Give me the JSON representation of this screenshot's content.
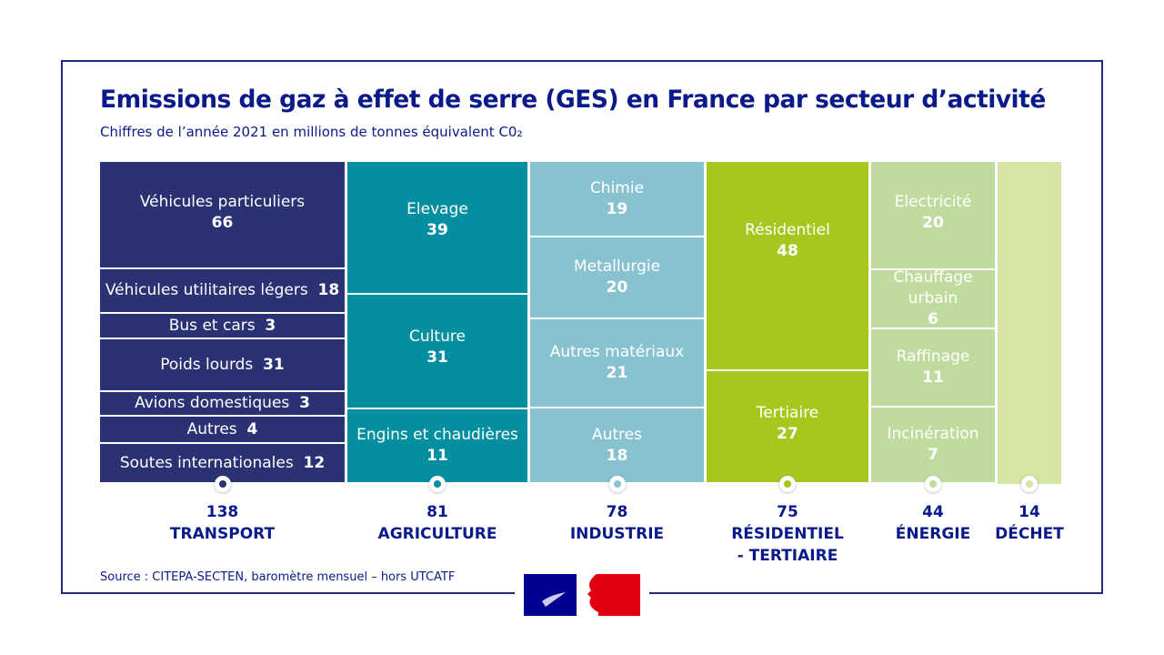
{
  "chart_data": {
    "type": "treemap",
    "title": "Emissions de gaz à effet de serre (GES) en France par secteur d’activité",
    "subtitle": "Chiffres de l’année 2021 en millions de tonnes équivalent C0₂",
    "unit": "millions de tonnes équivalent CO2",
    "sectors": [
      {
        "name": "TRANSPORT",
        "total": 138,
        "color": "#2b3274",
        "items": [
          {
            "label": "Véhicules particuliers",
            "value": 66
          },
          {
            "label": "Véhicules utilitaires légers",
            "value": 18
          },
          {
            "label": "Bus et cars",
            "value": 3
          },
          {
            "label": "Poids lourds",
            "value": 31
          },
          {
            "label": "Avions domestiques",
            "value": 3
          },
          {
            "label": "Autres",
            "value": 4
          },
          {
            "label": "Soutes internationales",
            "value": 12
          }
        ]
      },
      {
        "name": "AGRICULTURE",
        "total": 81,
        "color": "#048fa0",
        "items": [
          {
            "label": "Elevage",
            "value": 39
          },
          {
            "label": "Culture",
            "value": 31
          },
          {
            "label": "Engins et chaudières",
            "value": 11
          }
        ]
      },
      {
        "name": "INDUSTRIE",
        "total": 78,
        "color": "#88c2d0",
        "items": [
          {
            "label": "Chimie",
            "value": 19
          },
          {
            "label": "Metallurgie",
            "value": 20
          },
          {
            "label": "Autres matériaux",
            "value": 21
          },
          {
            "label": "Autres",
            "value": 18
          }
        ]
      },
      {
        "name": "RÉSIDENTIEL - TERTIAIRE",
        "total": 75,
        "color": "#a8c71e",
        "items": [
          {
            "label": "Résidentiel",
            "value": 48
          },
          {
            "label": "Tertiaire",
            "value": 27
          }
        ]
      },
      {
        "name": "ÉNERGIE",
        "total": 44,
        "color": "#bfdb9e",
        "items": [
          {
            "label": "Electricité",
            "value": 20
          },
          {
            "label": "Chauffage urbain",
            "value": 6
          },
          {
            "label": "Raffinage",
            "value": 11
          },
          {
            "label": "Incinération",
            "value": 7
          }
        ]
      },
      {
        "name": "DÉCHET",
        "total": 14,
        "color": "#d4e5a4",
        "items": []
      }
    ]
  },
  "source": "Source : CITEPA-SECTEN, baromètre mensuel – hors UTCATF",
  "logo": "République Française"
}
